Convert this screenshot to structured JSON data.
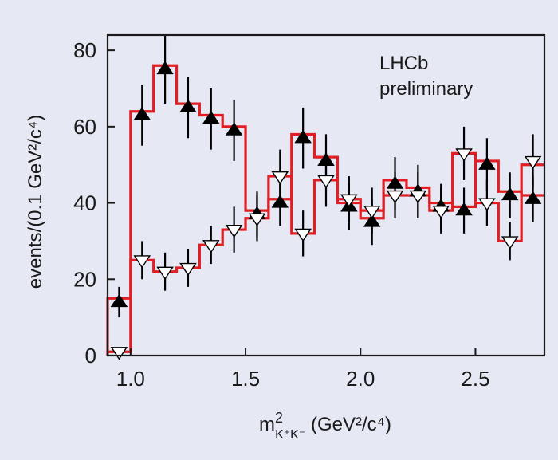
{
  "chart_data": {
    "type": "scatter",
    "title": "",
    "annotations": [
      "LHCb",
      "preliminary"
    ],
    "ylabel": "events/(0.1 GeV²/c⁴)",
    "xlabel": {
      "base": "m",
      "sup": "2",
      "sub": "K⁺K⁻",
      "units": " (GeV²/c⁴)"
    },
    "xlim": [
      0.9,
      2.8
    ],
    "ylim": [
      0,
      84
    ],
    "xticks": [
      {
        "v": 1.0,
        "label": "1.0"
      },
      {
        "v": 1.5,
        "label": "1.5"
      },
      {
        "v": 2.0,
        "label": "2.0"
      },
      {
        "v": 2.5,
        "label": "2.5"
      }
    ],
    "yticks": [
      {
        "v": 0,
        "label": "0"
      },
      {
        "v": 20,
        "label": "20"
      },
      {
        "v": 40,
        "label": "40"
      },
      {
        "v": 60,
        "label": "60"
      },
      {
        "v": 80,
        "label": "80"
      }
    ],
    "bin_edges": [
      0.9,
      1.0,
      1.1,
      1.2,
      1.3,
      1.4,
      1.5,
      1.6,
      1.7,
      1.8,
      1.9,
      2.0,
      2.1,
      2.2,
      2.3,
      2.4,
      2.5,
      2.6,
      2.7,
      2.8
    ],
    "x": [
      0.95,
      1.05,
      1.15,
      1.25,
      1.35,
      1.45,
      1.55,
      1.65,
      1.75,
      1.85,
      1.95,
      2.05,
      2.15,
      2.25,
      2.35,
      2.45,
      2.55,
      2.65,
      2.75
    ],
    "series": [
      {
        "marker": "filled-up-triangle",
        "color": "#000000",
        "values": [
          14,
          63,
          75,
          65,
          62,
          59,
          37,
          40,
          57,
          51,
          39,
          35,
          45,
          43,
          39,
          38,
          50,
          42,
          41
        ],
        "errors": [
          4,
          8,
          9,
          8,
          8,
          8,
          6,
          6,
          8,
          7,
          6,
          6,
          7,
          7,
          6,
          6,
          7,
          6,
          6
        ]
      },
      {
        "marker": "open-down-triangle",
        "color": "#ffffff",
        "values": [
          1,
          25,
          22,
          23,
          29,
          33,
          36,
          47,
          32,
          46,
          41,
          38,
          42,
          42,
          38,
          53,
          40,
          30,
          51
        ],
        "errors": [
          1,
          5,
          5,
          5,
          5,
          6,
          6,
          7,
          6,
          7,
          6,
          6,
          6,
          6,
          6,
          7,
          6,
          5,
          7
        ]
      },
      {
        "type": "step",
        "name": "",
        "color": "#e01e24",
        "values": [
          15,
          64,
          76,
          66,
          63,
          60,
          38,
          41,
          58,
          52,
          40,
          36,
          46,
          44,
          40,
          39,
          51,
          43,
          42
        ]
      },
      {
        "type": "step",
        "name": "",
        "color": "#e01e24",
        "values": [
          1,
          25,
          22,
          23,
          29,
          33,
          36,
          47,
          32,
          46,
          41,
          38,
          42,
          42,
          38,
          53,
          40,
          30,
          50
        ]
      }
    ],
    "grid": false
  }
}
